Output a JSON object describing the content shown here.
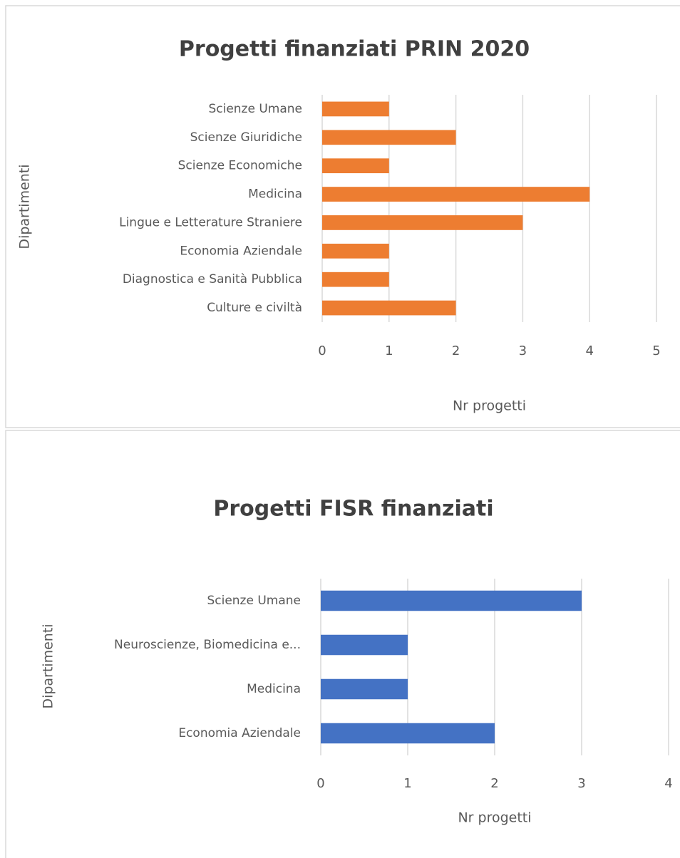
{
  "chart_data": [
    {
      "type": "bar",
      "orientation": "horizontal",
      "title": "Progetti finanziati PRIN 2020",
      "x_label": "Nr progetti",
      "y_label": "Dipartimenti",
      "categories": [
        "Scienze Umane",
        "Scienze Giuridiche",
        "Scienze Economiche",
        "Medicina",
        "Lingue e Letterature Straniere",
        "Economia Aziendale",
        "Diagnostica e Sanità Pubblica",
        "Culture e civiltà"
      ],
      "values": [
        1,
        2,
        1,
        4,
        3,
        1,
        1,
        2
      ],
      "color": "#ed7d31",
      "xlim": [
        0,
        5
      ],
      "xticks": [
        0,
        1,
        2,
        3,
        4,
        5
      ],
      "grid": true
    },
    {
      "type": "bar",
      "orientation": "horizontal",
      "title": "Progetti FISR finanziati",
      "x_label": "Nr progetti",
      "y_label": "Dipartimenti",
      "categories": [
        "Scienze Umane",
        "Neuroscienze, Biomedicina e...",
        "Medicina",
        "Economia Aziendale"
      ],
      "values": [
        3,
        1,
        1,
        2
      ],
      "color": "#4472c4",
      "xlim": [
        0,
        4
      ],
      "xticks": [
        0,
        1,
        2,
        3,
        4
      ],
      "grid": true
    }
  ]
}
